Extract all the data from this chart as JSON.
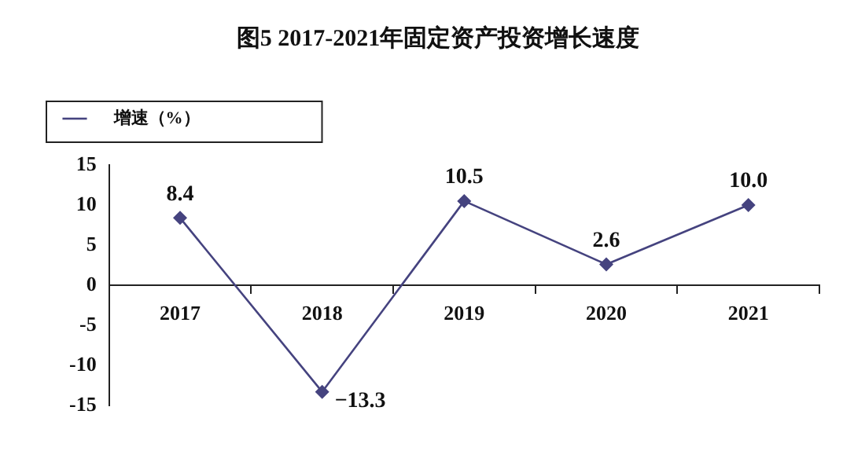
{
  "chart_data": {
    "type": "line",
    "title": "图5 2017-2021年固定资产投资增长速度",
    "categories": [
      "2017",
      "2018",
      "2019",
      "2020",
      "2021"
    ],
    "series": [
      {
        "name": "增速（%）",
        "color": "#45437f",
        "values": [
          8.4,
          -13.3,
          10.5,
          2.6,
          10.0
        ],
        "value_labels": [
          "8.4",
          "−13.3",
          "10.5",
          "2.6",
          "10.0"
        ]
      }
    ],
    "ylim": [
      -15,
      15
    ],
    "yticks": [
      -15,
      -10,
      -5,
      0,
      5,
      10,
      15
    ],
    "grid": false,
    "legend": "top left",
    "marker": "diamond",
    "line_style": "solid"
  }
}
